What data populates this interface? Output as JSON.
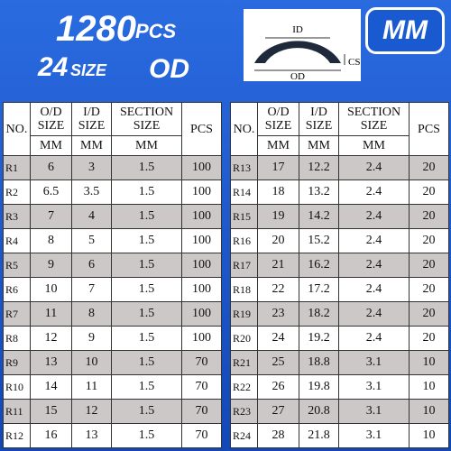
{
  "header": {
    "count": "1280",
    "count_unit": "PCS",
    "sizes": "24",
    "sizes_unit": "SIZE",
    "od": "OD",
    "unit_badge": "MM"
  },
  "diagram": {
    "id": "ID",
    "od": "OD",
    "cs": "CS"
  },
  "tables": [
    {
      "columns": [
        "NO.",
        "O/D SIZE",
        "I/D SIZE",
        "SECTION SIZE",
        "PCS"
      ],
      "units": [
        "MM",
        "MM",
        "MM"
      ],
      "rows": [
        [
          "R1",
          "6",
          "3",
          "1.5",
          "100"
        ],
        [
          "R2",
          "6.5",
          "3.5",
          "1.5",
          "100"
        ],
        [
          "R3",
          "7",
          "4",
          "1.5",
          "100"
        ],
        [
          "R4",
          "8",
          "5",
          "1.5",
          "100"
        ],
        [
          "R5",
          "9",
          "6",
          "1.5",
          "100"
        ],
        [
          "R6",
          "10",
          "7",
          "1.5",
          "100"
        ],
        [
          "R7",
          "11",
          "8",
          "1.5",
          "100"
        ],
        [
          "R8",
          "12",
          "9",
          "1.5",
          "100"
        ],
        [
          "R9",
          "13",
          "10",
          "1.5",
          "70"
        ],
        [
          "R10",
          "14",
          "11",
          "1.5",
          "70"
        ],
        [
          "R11",
          "15",
          "12",
          "1.5",
          "70"
        ],
        [
          "R12",
          "16",
          "13",
          "1.5",
          "70"
        ]
      ]
    },
    {
      "columns": [
        "NO.",
        "O/D SIZE",
        "I/D SIZE",
        "SECTION SIZE",
        "PCS"
      ],
      "units": [
        "MM",
        "MM",
        "MM"
      ],
      "rows": [
        [
          "R13",
          "17",
          "12.2",
          "2.4",
          "20"
        ],
        [
          "R14",
          "18",
          "13.2",
          "2.4",
          "20"
        ],
        [
          "R15",
          "19",
          "14.2",
          "2.4",
          "20"
        ],
        [
          "R16",
          "20",
          "15.2",
          "2.4",
          "20"
        ],
        [
          "R17",
          "21",
          "16.2",
          "2.4",
          "20"
        ],
        [
          "R18",
          "22",
          "17.2",
          "2.4",
          "20"
        ],
        [
          "R19",
          "23",
          "18.2",
          "2.4",
          "20"
        ],
        [
          "R20",
          "24",
          "19.2",
          "2.4",
          "20"
        ],
        [
          "R21",
          "25",
          "18.8",
          "3.1",
          "10"
        ],
        [
          "R22",
          "26",
          "19.8",
          "3.1",
          "10"
        ],
        [
          "R23",
          "27",
          "20.8",
          "3.1",
          "10"
        ],
        [
          "R24",
          "28",
          "21.8",
          "3.1",
          "10"
        ]
      ]
    }
  ]
}
